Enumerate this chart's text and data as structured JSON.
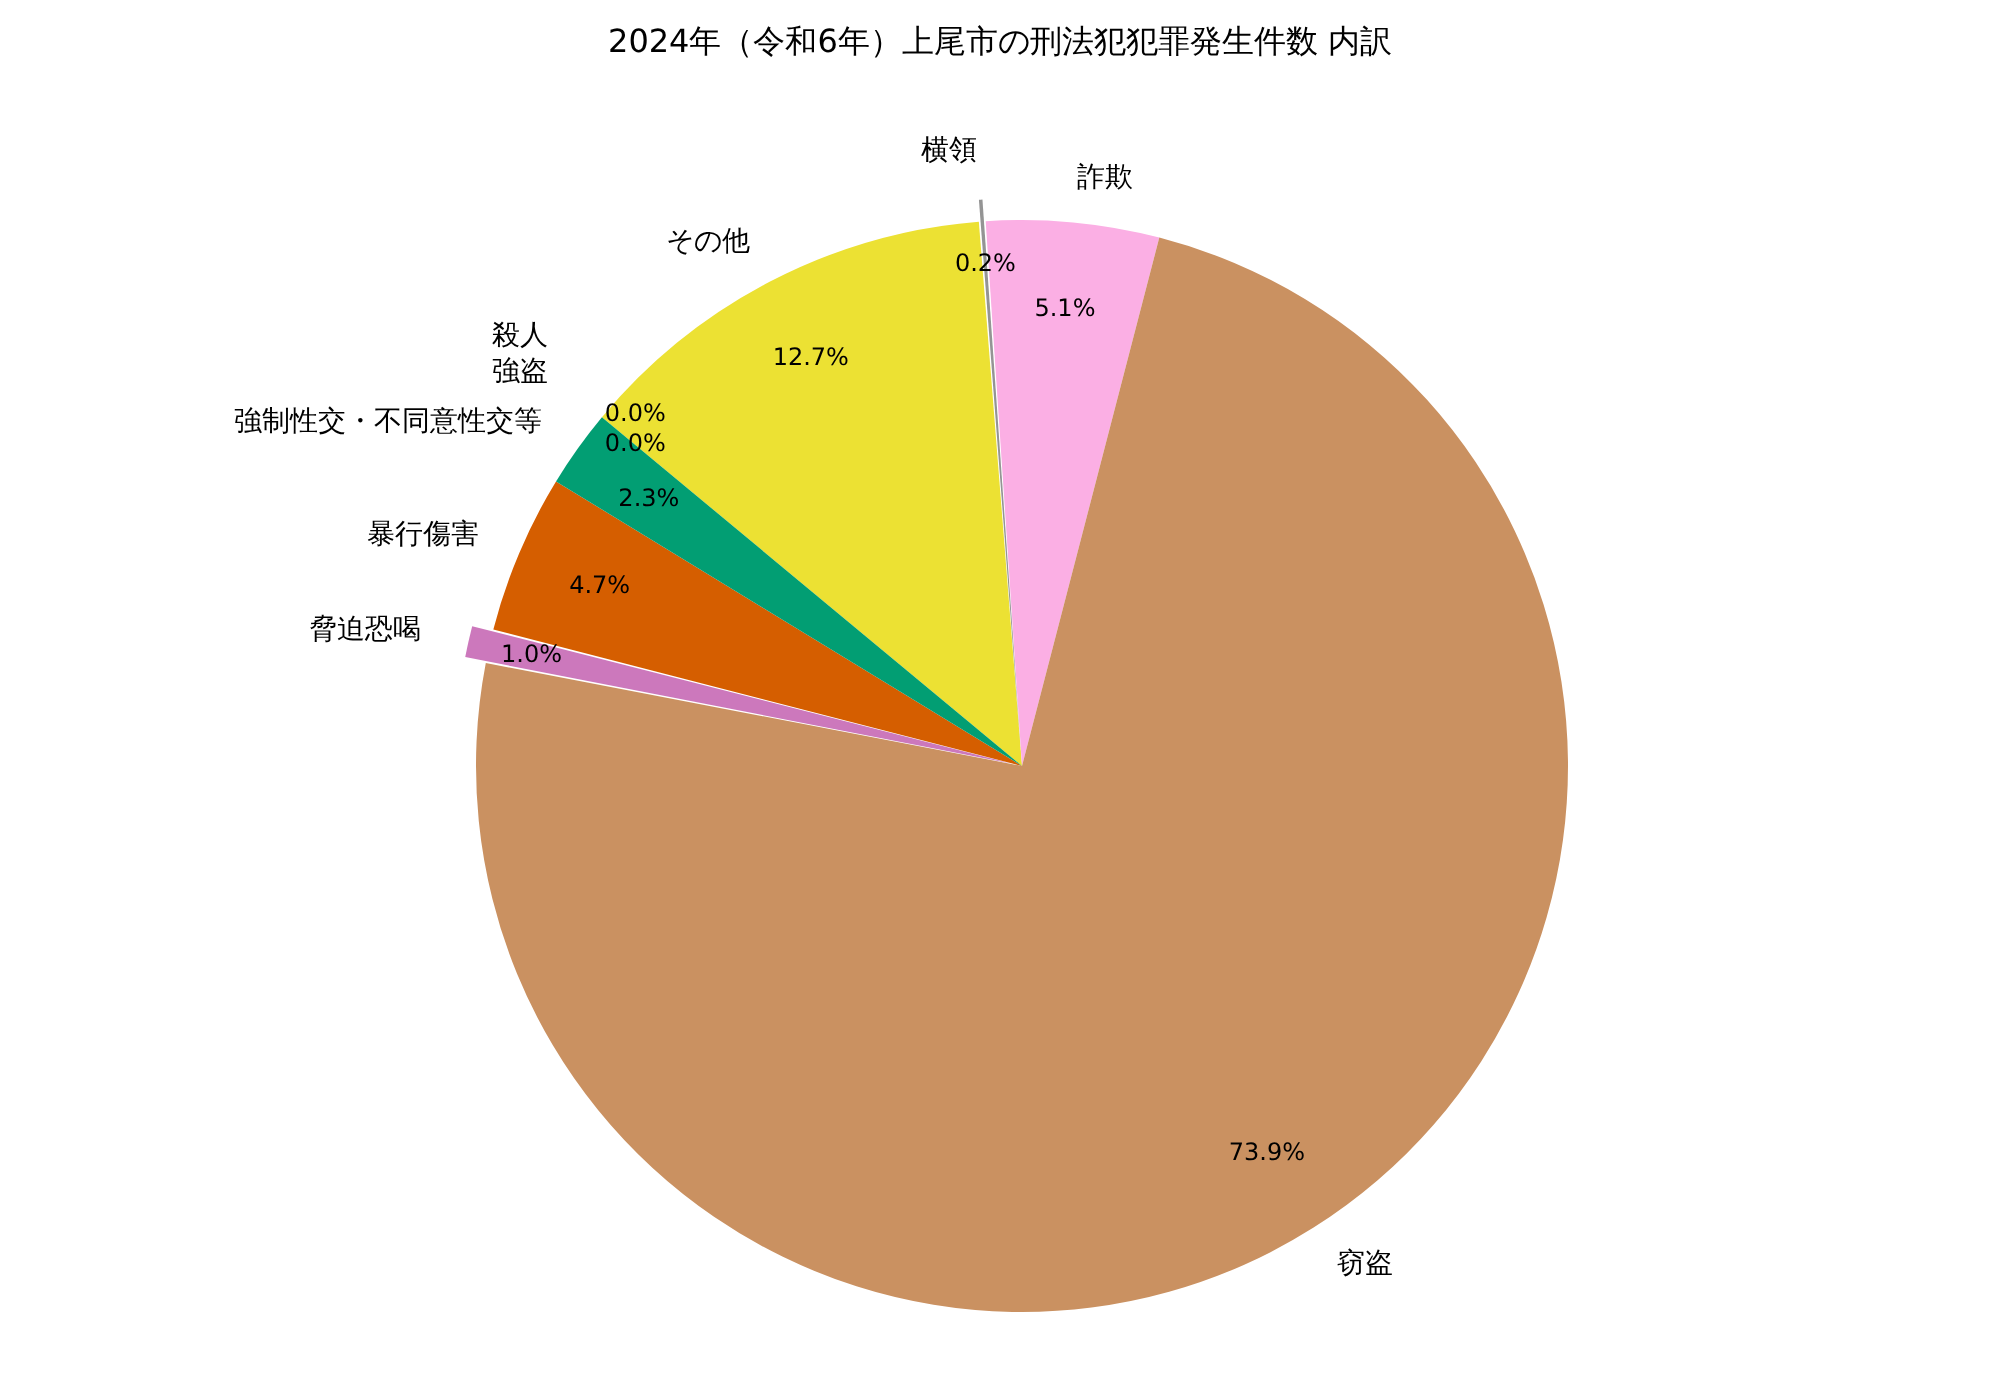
{
  "chart_data": {
    "type": "pie",
    "title": "2024年（令和6年）上尾市の刑法犯犯罪発生件数 内訳",
    "categories": [
      "その他",
      "横領",
      "詐欺",
      "窃盗",
      "脅迫恐喝",
      "暴行傷害",
      "強制性交・不同意性交等",
      "強盗",
      "殺人"
    ],
    "values": [
      12.7,
      0.2,
      5.1,
      73.9,
      1.0,
      4.7,
      2.3,
      0.0,
      0.0
    ],
    "colors": [
      "#ece133",
      "#949494",
      "#fbafe4",
      "#ca9161",
      "#cc78bc",
      "#d55e00",
      "#029e73",
      "#de8f05",
      "#0173b2"
    ],
    "value_labels": [
      "12.7%",
      "0.2%",
      "5.1%",
      "73.9%",
      "1.0%",
      "4.7%",
      "2.3%",
      "0.0%",
      "0.0%"
    ]
  }
}
